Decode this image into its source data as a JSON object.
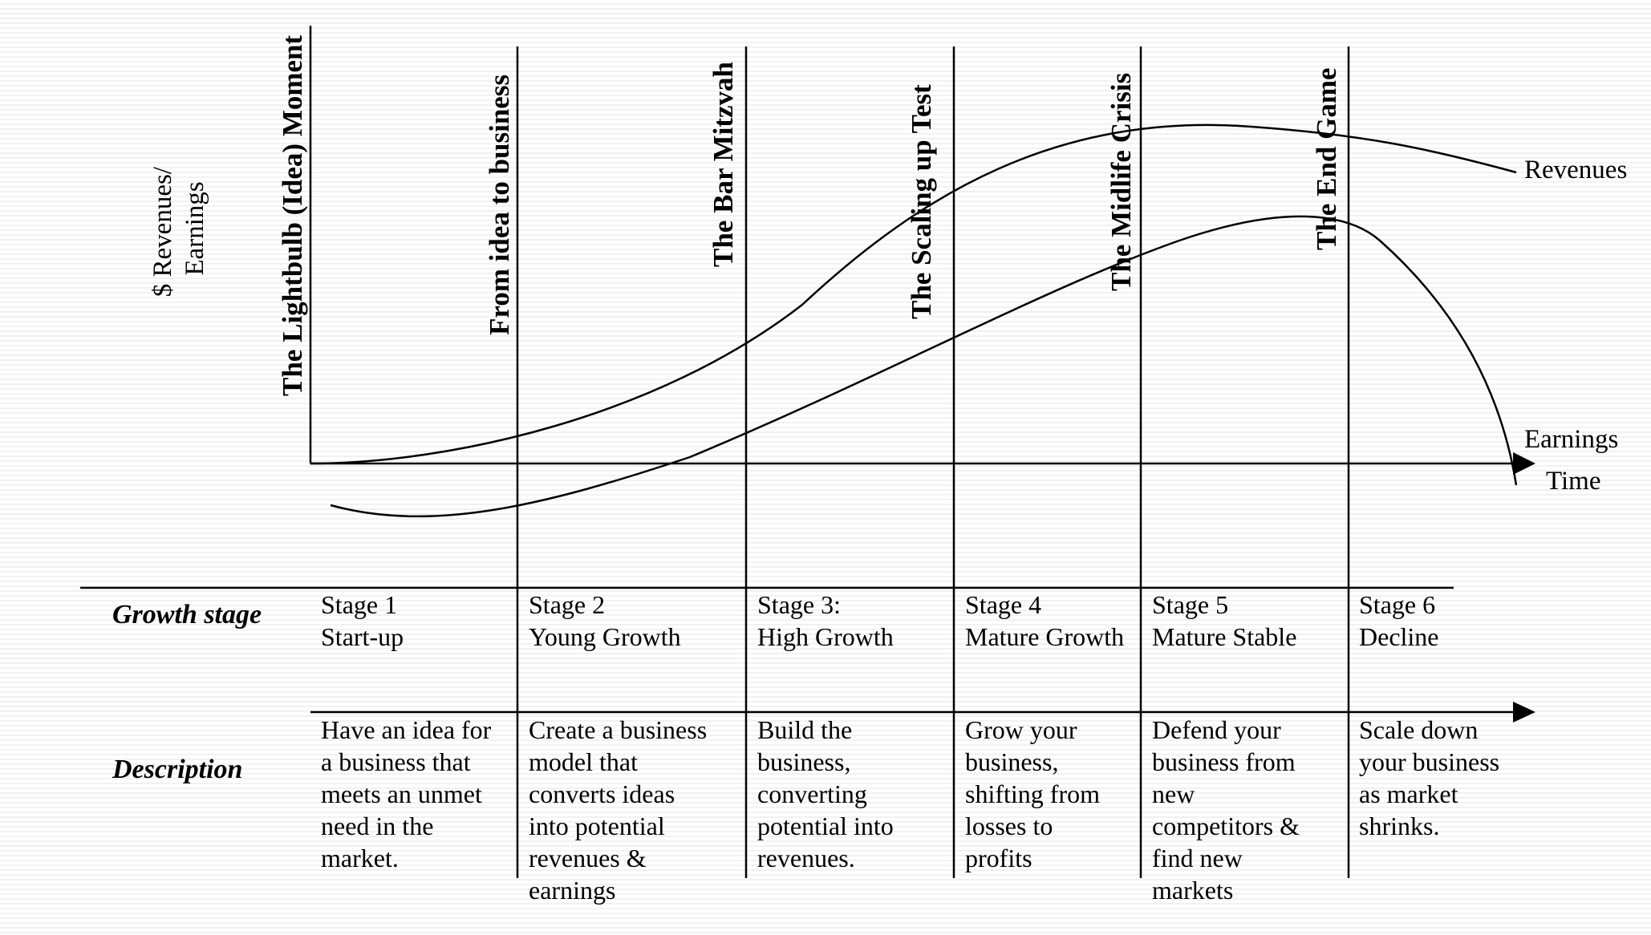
{
  "y_axis_label": [
    "$ Revenues/",
    "Earnings"
  ],
  "x_axis_label": "Time",
  "curves": [
    {
      "name": "Revenues",
      "color": "#000000"
    },
    {
      "name": "Earnings",
      "color": "#000000"
    }
  ],
  "milestones": [
    "The Lightbulb (Idea) Moment",
    "From idea to business",
    "The Bar Mitzvah",
    "The Scaling up Test",
    "The Midlife Crisis",
    "The End Game"
  ],
  "table": {
    "growth_stage_label": "Growth stage",
    "description_label": "Description",
    "stages": [
      {
        "name": "Stage 1",
        "title": "Start-up",
        "description": [
          "Have an idea for",
          "a business that",
          "meets an unmet",
          "need in the",
          "market."
        ]
      },
      {
        "name": "Stage 2",
        "title": "Young Growth",
        "description": [
          "Create a business",
          "model that",
          "converts ideas",
          "into potential",
          "revenues &",
          "earnings"
        ]
      },
      {
        "name": "Stage 3:",
        "title": "High Growth",
        "description": [
          "Build the",
          "business,",
          "converting",
          "potential into",
          "revenues."
        ]
      },
      {
        "name": "Stage 4",
        "title": "Mature Growth",
        "description": [
          "Grow your",
          "business,",
          "shifting from",
          "losses to",
          "profits"
        ]
      },
      {
        "name": "Stage 5",
        "title": "Mature Stable",
        "description": [
          "Defend your",
          "business from",
          "new",
          "competitors &",
          "find new",
          "markets"
        ]
      },
      {
        "name": "Stage 6",
        "title": "Decline",
        "description": [
          "Scale down",
          "your business",
          "as market",
          "shrinks."
        ]
      }
    ]
  }
}
